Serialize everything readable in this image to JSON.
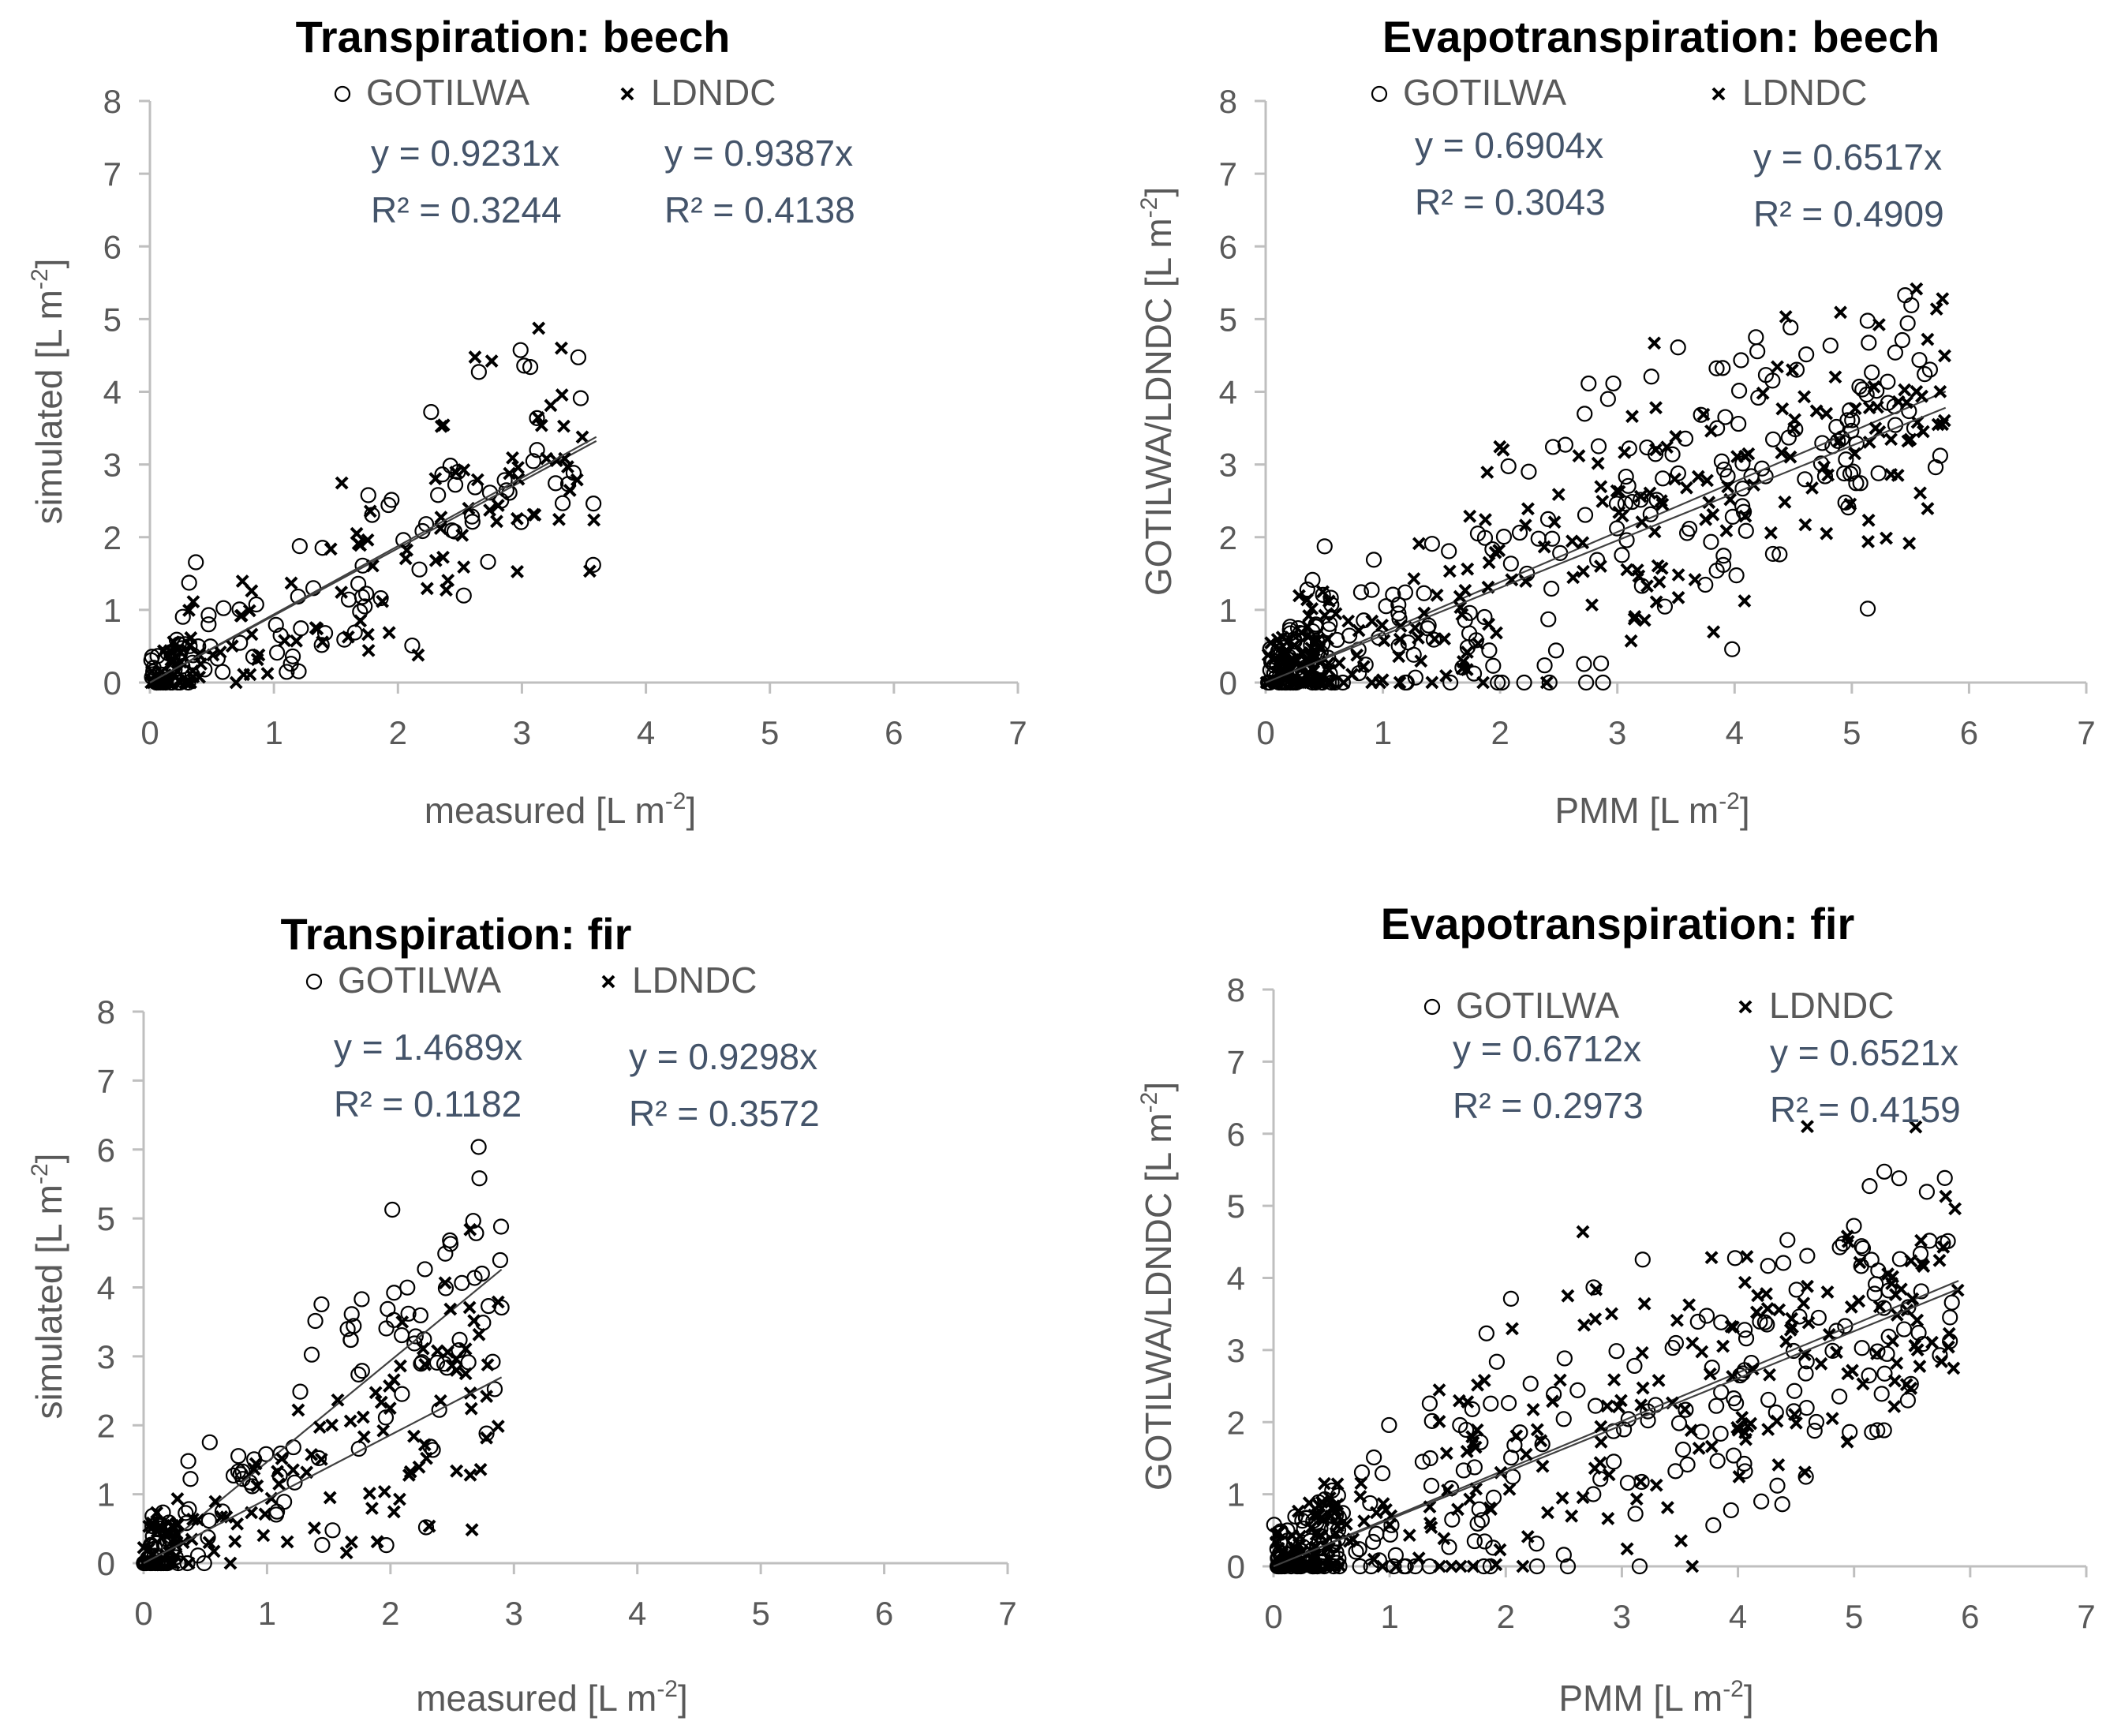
{
  "chart_data": [
    {
      "type": "scatter",
      "title": "Transpiration: beech",
      "xlabel": "measured [L m",
      "xlabel_sup": "-2",
      "xlabel_end": "]",
      "ylabel": "simulated [L m",
      "ylabel_sup": "-2",
      "ylabel_end": "]",
      "xlim": [
        0,
        7
      ],
      "ylim": [
        0,
        8
      ],
      "xticks": [
        "0",
        "1",
        "2",
        "3",
        "4",
        "5",
        "6",
        "7"
      ],
      "yticks": [
        "0",
        "1",
        "2",
        "3",
        "4",
        "5",
        "6",
        "7",
        "8"
      ],
      "legend": [
        "GOTILWA",
        "LDNDC"
      ],
      "series": [
        {
          "name": "GOTILWA",
          "marker": "circle",
          "slope": 0.9231,
          "equation": "y = 0.9231x",
          "r2": "R² = 0.3244",
          "n": 120,
          "seed": 11,
          "xmax": 3.6,
          "spread": 1.05
        },
        {
          "name": "LDNDC",
          "marker": "x",
          "slope": 0.9387,
          "equation": "y = 0.9387x",
          "r2": "R² = 0.4138",
          "n": 130,
          "seed": 23,
          "xmax": 3.6,
          "spread": 1.0
        }
      ]
    },
    {
      "type": "scatter",
      "title": "Evapotranspiration: beech",
      "xlabel": "PMM [L m",
      "xlabel_sup": "-2",
      "xlabel_end": "]",
      "ylabel": "GOTILWA/LDNDC  [L m",
      "ylabel_sup": "-2",
      "ylabel_end": "]",
      "xlim": [
        0,
        7
      ],
      "ylim": [
        0,
        8
      ],
      "xticks": [
        "0",
        "1",
        "2",
        "3",
        "4",
        "5",
        "6",
        "7"
      ],
      "yticks": [
        "0",
        "1",
        "2",
        "3",
        "4",
        "5",
        "6",
        "7",
        "8"
      ],
      "legend": [
        "GOTILWA",
        "LDNDC"
      ],
      "series": [
        {
          "name": "GOTILWA",
          "marker": "circle",
          "slope": 0.6904,
          "equation": "y = 0.6904x",
          "r2": "R² = 0.3043",
          "n": 260,
          "seed": 37,
          "xmax": 5.8,
          "spread": 1.3
        },
        {
          "name": "LDNDC",
          "marker": "x",
          "slope": 0.6517,
          "equation": "y = 0.6517x",
          "r2": "R² = 0.4909",
          "n": 260,
          "seed": 41,
          "xmax": 5.8,
          "spread": 1.2
        }
      ]
    },
    {
      "type": "scatter",
      "title": "Transpiration: fir",
      "xlabel": "measured [L m",
      "xlabel_sup": "-2",
      "xlabel_end": "]",
      "ylabel": "simulated [L m",
      "ylabel_sup": "-2",
      "ylabel_end": "]",
      "xlim": [
        0,
        7
      ],
      "ylim": [
        0,
        8
      ],
      "xticks": [
        "0",
        "1",
        "2",
        "3",
        "4",
        "5",
        "6",
        "7"
      ],
      "yticks": [
        "0",
        "1",
        "2",
        "3",
        "4",
        "5",
        "6",
        "7",
        "8"
      ],
      "legend": [
        "GOTILWA",
        "LDNDC"
      ],
      "series": [
        {
          "name": "GOTILWA",
          "marker": "circle",
          "slope": 1.4689,
          "equation": "y = 1.4689x",
          "r2": "R² = 0.1182",
          "n": 130,
          "seed": 53,
          "xmax": 2.9,
          "spread": 1.25
        },
        {
          "name": "LDNDC",
          "marker": "x",
          "slope": 0.9298,
          "equation": "y = 0.9298x",
          "r2": "R² = 0.3572",
          "n": 130,
          "seed": 67,
          "xmax": 2.9,
          "spread": 1.15
        }
      ]
    },
    {
      "type": "scatter",
      "title": "Evapotranspiration: fir",
      "xlabel": "PMM [L m",
      "xlabel_sup": "-2",
      "xlabel_end": "]",
      "ylabel": "GOTILWA/LDNDC  [L m",
      "ylabel_sup": "-2",
      "ylabel_end": "]",
      "xlim": [
        0,
        7
      ],
      "ylim": [
        0,
        8
      ],
      "xticks": [
        "0",
        "1",
        "2",
        "3",
        "4",
        "5",
        "6",
        "7"
      ],
      "yticks": [
        "0",
        "1",
        "2",
        "3",
        "4",
        "5",
        "6",
        "7",
        "8"
      ],
      "legend": [
        "GOTILWA",
        "LDNDC"
      ],
      "series": [
        {
          "name": "GOTILWA",
          "marker": "circle",
          "slope": 0.6712,
          "equation": "y = 0.6712x",
          "r2": "R² = 0.2973",
          "n": 260,
          "seed": 71,
          "xmax": 5.9,
          "spread": 1.3
        },
        {
          "name": "LDNDC",
          "marker": "x",
          "slope": 0.6521,
          "equation": "y = 0.6521x",
          "r2": "R² = 0.4159",
          "n": 260,
          "seed": 89,
          "xmax": 5.9,
          "spread": 1.2
        }
      ]
    }
  ]
}
